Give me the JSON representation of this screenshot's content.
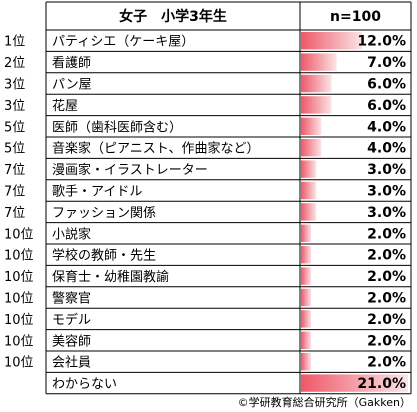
{
  "header": {
    "category_heading": "女子　小学3年生",
    "sample_heading": "n=100"
  },
  "footer": {
    "copyright": "©学研教育総合研究所（Gakken）"
  },
  "colors": {
    "bar_light": "#fbe4e6",
    "bar_dark": "#ee5868",
    "grid": "#000000"
  },
  "chart_data": {
    "type": "table",
    "title": "",
    "columns": [
      "女子　小学3年生",
      "n=100"
    ],
    "unit": "%",
    "rows": [
      {
        "rank": "1位",
        "label": "パティシエ（ケーキ屋）",
        "value": 12.0,
        "display": "12.0%"
      },
      {
        "rank": "2位",
        "label": "看護師",
        "value": 7.0,
        "display": "7.0%"
      },
      {
        "rank": "3位",
        "label": "パン屋",
        "value": 6.0,
        "display": "6.0%"
      },
      {
        "rank": "3位",
        "label": "花屋",
        "value": 6.0,
        "display": "6.0%"
      },
      {
        "rank": "5位",
        "label": "医師（歯科医師含む）",
        "value": 4.0,
        "display": "4.0%"
      },
      {
        "rank": "5位",
        "label": "音楽家（ピアニスト、作曲家など）",
        "value": 4.0,
        "display": "4.0%"
      },
      {
        "rank": "7位",
        "label": "漫画家・イラストレーター",
        "value": 3.0,
        "display": "3.0%"
      },
      {
        "rank": "7位",
        "label": "歌手・アイドル",
        "value": 3.0,
        "display": "3.0%"
      },
      {
        "rank": "7位",
        "label": "ファッション関係",
        "value": 3.0,
        "display": "3.0%"
      },
      {
        "rank": "10位",
        "label": "小説家",
        "value": 2.0,
        "display": "2.0%"
      },
      {
        "rank": "10位",
        "label": "学校の教師・先生",
        "value": 2.0,
        "display": "2.0%"
      },
      {
        "rank": "10位",
        "label": "保育士・幼稚園教諭",
        "value": 2.0,
        "display": "2.0%"
      },
      {
        "rank": "10位",
        "label": "警察官",
        "value": 2.0,
        "display": "2.0%"
      },
      {
        "rank": "10位",
        "label": "モデル",
        "value": 2.0,
        "display": "2.0%"
      },
      {
        "rank": "10位",
        "label": "美容師",
        "value": 2.0,
        "display": "2.0%"
      },
      {
        "rank": "10位",
        "label": "会社員",
        "value": 2.0,
        "display": "2.0%"
      },
      {
        "rank": "",
        "label": "わからない",
        "value": 21.0,
        "display": "21.0%"
      }
    ],
    "bar_max": 21.0
  }
}
